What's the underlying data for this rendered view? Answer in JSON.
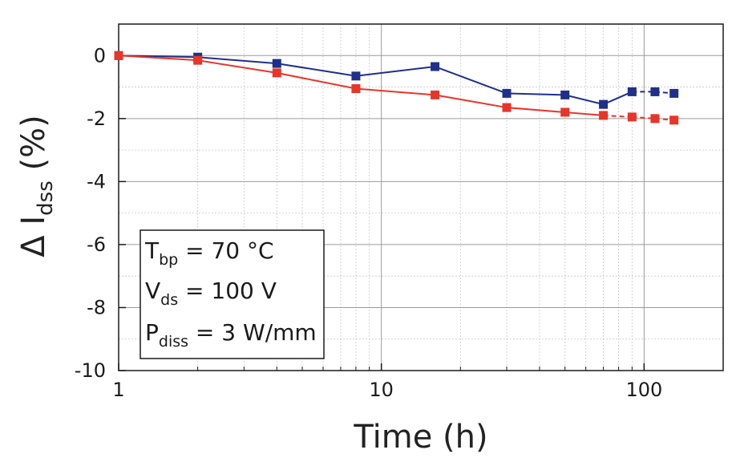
{
  "chart_data": {
    "type": "line",
    "title": "",
    "xlabel": "Time (h)",
    "ylabel": {
      "main": "Δ I",
      "sub": "dss",
      "suffix": " (%)"
    },
    "xscale": "log",
    "xlim": [
      1,
      200
    ],
    "ylim": [
      -10,
      1
    ],
    "x_ticks": [
      1,
      10,
      100
    ],
    "x_tick_labels": [
      "1",
      "10",
      "100"
    ],
    "y_ticks": [
      0,
      -2,
      -4,
      -6,
      -8,
      -10
    ],
    "y_tick_labels": [
      "0",
      "-2",
      "-4",
      "-6",
      "-8",
      "-10"
    ],
    "grid": true,
    "series": [
      {
        "color": "#1f2f8a",
        "marker": "square",
        "x": [
          1,
          2,
          4,
          8,
          16,
          30,
          50,
          70,
          90,
          110,
          130
        ],
        "y": [
          0,
          -0.05,
          -0.25,
          -0.65,
          -0.35,
          -1.2,
          -1.25,
          -1.55,
          -1.15,
          -1.15,
          -1.2
        ],
        "dashed_from_index": 8
      },
      {
        "color": "#e8352a",
        "marker": "square",
        "x": [
          1,
          2,
          4,
          8,
          16,
          30,
          50,
          70,
          90,
          110,
          130
        ],
        "y": [
          0,
          -0.15,
          -0.55,
          -1.05,
          -1.25,
          -1.65,
          -1.8,
          -1.9,
          -1.95,
          -2.0,
          -2.05
        ],
        "dashed_from_index": 7
      }
    ],
    "annotation_box": {
      "lines": [
        {
          "main": "T",
          "sub": "bp",
          "rest": " = 70 °C"
        },
        {
          "main": "V",
          "sub": "ds",
          "rest": " = 100 V"
        },
        {
          "main": "P",
          "sub": "diss",
          "rest": " = 3 W/mm"
        }
      ]
    }
  }
}
